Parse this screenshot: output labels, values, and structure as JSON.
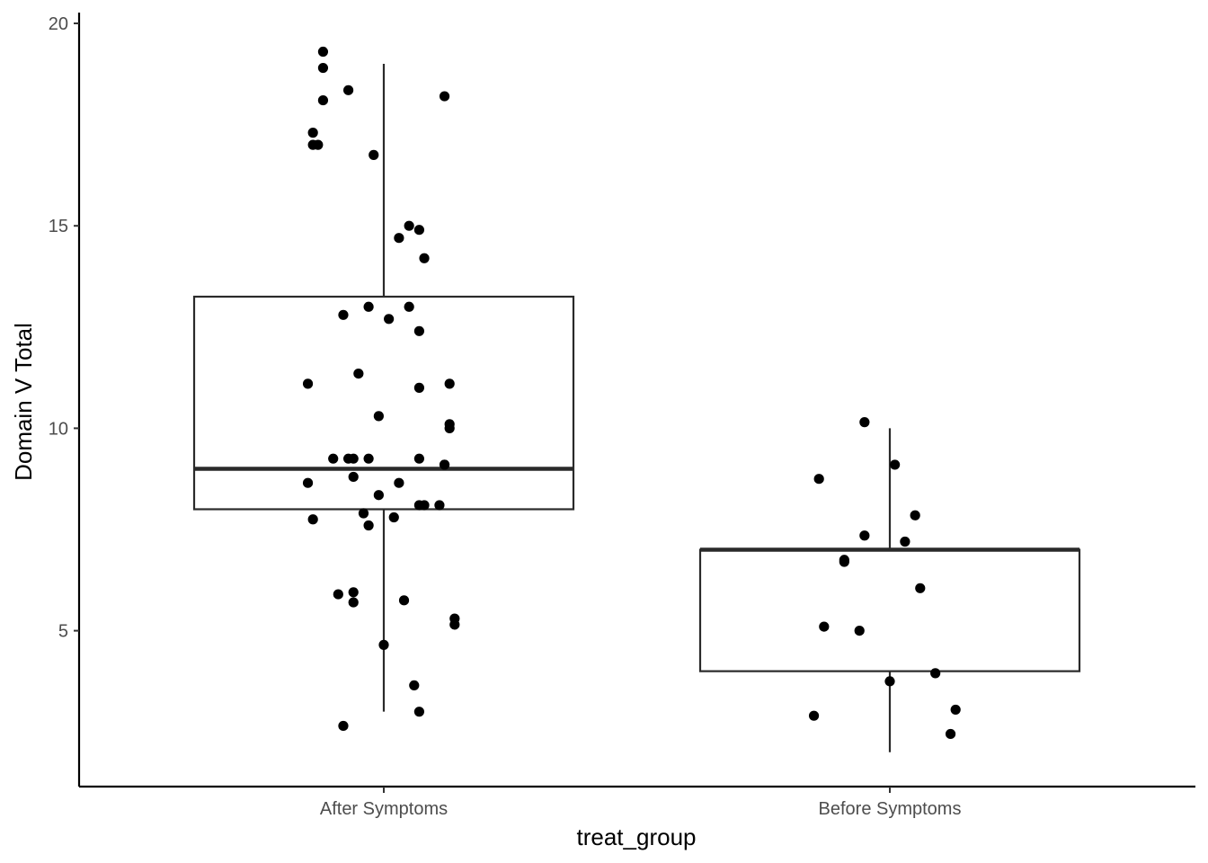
{
  "chart_data": {
    "type": "boxplot-jitter",
    "xlabel": "treat_group",
    "ylabel": "Domain V Total",
    "categories": [
      "After Symptoms",
      "Before Symptoms"
    ],
    "yticks": [
      5,
      10,
      15,
      20
    ],
    "ylim": [
      1.6,
      20.2
    ],
    "grid": false,
    "colors": {
      "axis": "#000000",
      "box": "#2a2a2a",
      "point": "#000000",
      "tick_label": "#4d4d4d"
    },
    "boxes": [
      {
        "category": "After Symptoms",
        "min": 3.0,
        "q1": 8.0,
        "median": 9.0,
        "q3": 13.25,
        "max": 19.0
      },
      {
        "category": "Before Symptoms",
        "min": 2.0,
        "q1": 4.0,
        "median": 7.0,
        "q3": 7.0,
        "max": 10.0
      }
    ],
    "points": [
      {
        "category": "After Symptoms",
        "jitter": [
          -0.12,
          -0.12,
          -0.12,
          -0.07,
          -0.14,
          -0.14,
          -0.13,
          -0.02,
          0.12,
          0.03,
          0.05,
          0.07,
          0.08,
          -0.08,
          -0.03,
          0.05,
          0.01,
          0.07,
          0.13,
          -0.15,
          -0.05,
          0.07,
          -0.01,
          0.13,
          0.13,
          -0.07,
          -0.1,
          -0.06,
          -0.03,
          0.07,
          0.12,
          0.12,
          -0.15,
          -0.06,
          0.03,
          -0.01,
          0.08,
          0.07,
          0.11,
          -0.14,
          -0.04,
          -0.03,
          0.02,
          -0.09,
          -0.06,
          -0.06,
          0.04,
          0.14,
          0.14,
          0.0,
          0.06,
          0.07,
          -0.08
        ],
        "y": [
          19.3,
          18.9,
          18.1,
          18.35,
          17.3,
          17.0,
          17.0,
          16.75,
          18.2,
          14.7,
          15.0,
          14.9,
          14.2,
          12.8,
          13.0,
          13.0,
          12.7,
          12.4,
          11.1,
          11.1,
          11.35,
          11.0,
          10.3,
          10.1,
          10.0,
          9.25,
          9.25,
          9.25,
          9.25,
          9.25,
          9.1,
          9.1,
          8.65,
          8.8,
          8.65,
          8.35,
          8.1,
          8.1,
          8.1,
          7.75,
          7.9,
          7.6,
          7.8,
          5.9,
          5.95,
          5.7,
          5.75,
          5.3,
          5.15,
          4.65,
          3.65,
          3.0,
          2.65
        ]
      },
      {
        "category": "Before Symptoms",
        "jitter": [
          -0.05,
          -0.14,
          0.01,
          -0.05,
          0.03,
          -0.09,
          -0.09,
          0.05,
          0.06,
          -0.13,
          -0.06,
          0.09,
          0.0,
          -0.15,
          0.13,
          0.12
        ],
        "y": [
          10.15,
          8.75,
          9.1,
          7.35,
          7.2,
          6.75,
          6.7,
          7.85,
          6.05,
          5.1,
          5.0,
          3.95,
          3.75,
          2.9,
          3.05,
          2.45
        ]
      }
    ]
  }
}
